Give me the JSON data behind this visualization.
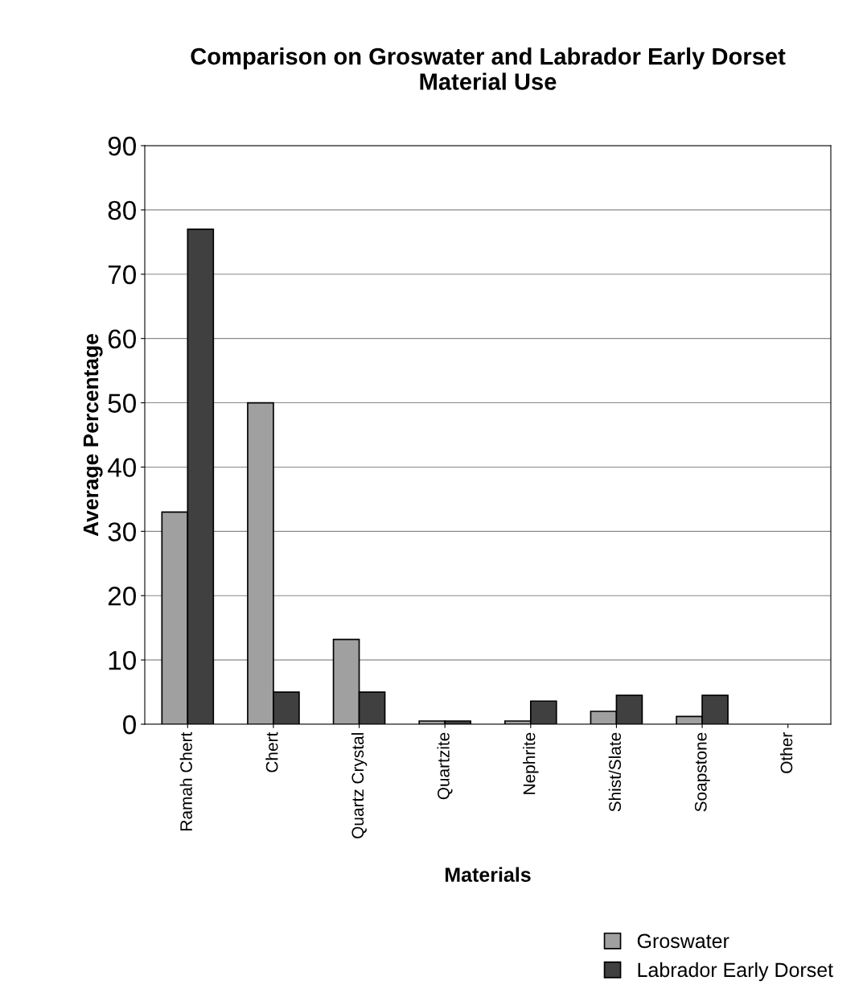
{
  "chart_data": {
    "type": "bar",
    "title": "Comparison on Groswater and Labrador Early Dorset\nMaterial Use",
    "xlabel": "Materials",
    "ylabel": "Average Percentage",
    "categories": [
      "Ramah Chert",
      "Chert",
      "Quartz Crystal",
      "Quartzite",
      "Nephrite",
      "Shist/Slate",
      "Soapstone",
      "Other"
    ],
    "series": [
      {
        "name": "Groswater",
        "color": "#a0a0a0",
        "values": [
          33,
          50,
          13.2,
          0.5,
          0.5,
          2,
          1.2,
          null
        ]
      },
      {
        "name": "Labrador Early Dorset",
        "color": "#404040",
        "values": [
          77,
          5,
          5,
          0.5,
          3.6,
          4.5,
          4.5,
          null
        ]
      }
    ],
    "ylim": [
      0,
      90
    ],
    "yticks": [
      0,
      10,
      20,
      30,
      40,
      50,
      60,
      70,
      80,
      90
    ],
    "grid": "y",
    "legend": "bottom right"
  }
}
